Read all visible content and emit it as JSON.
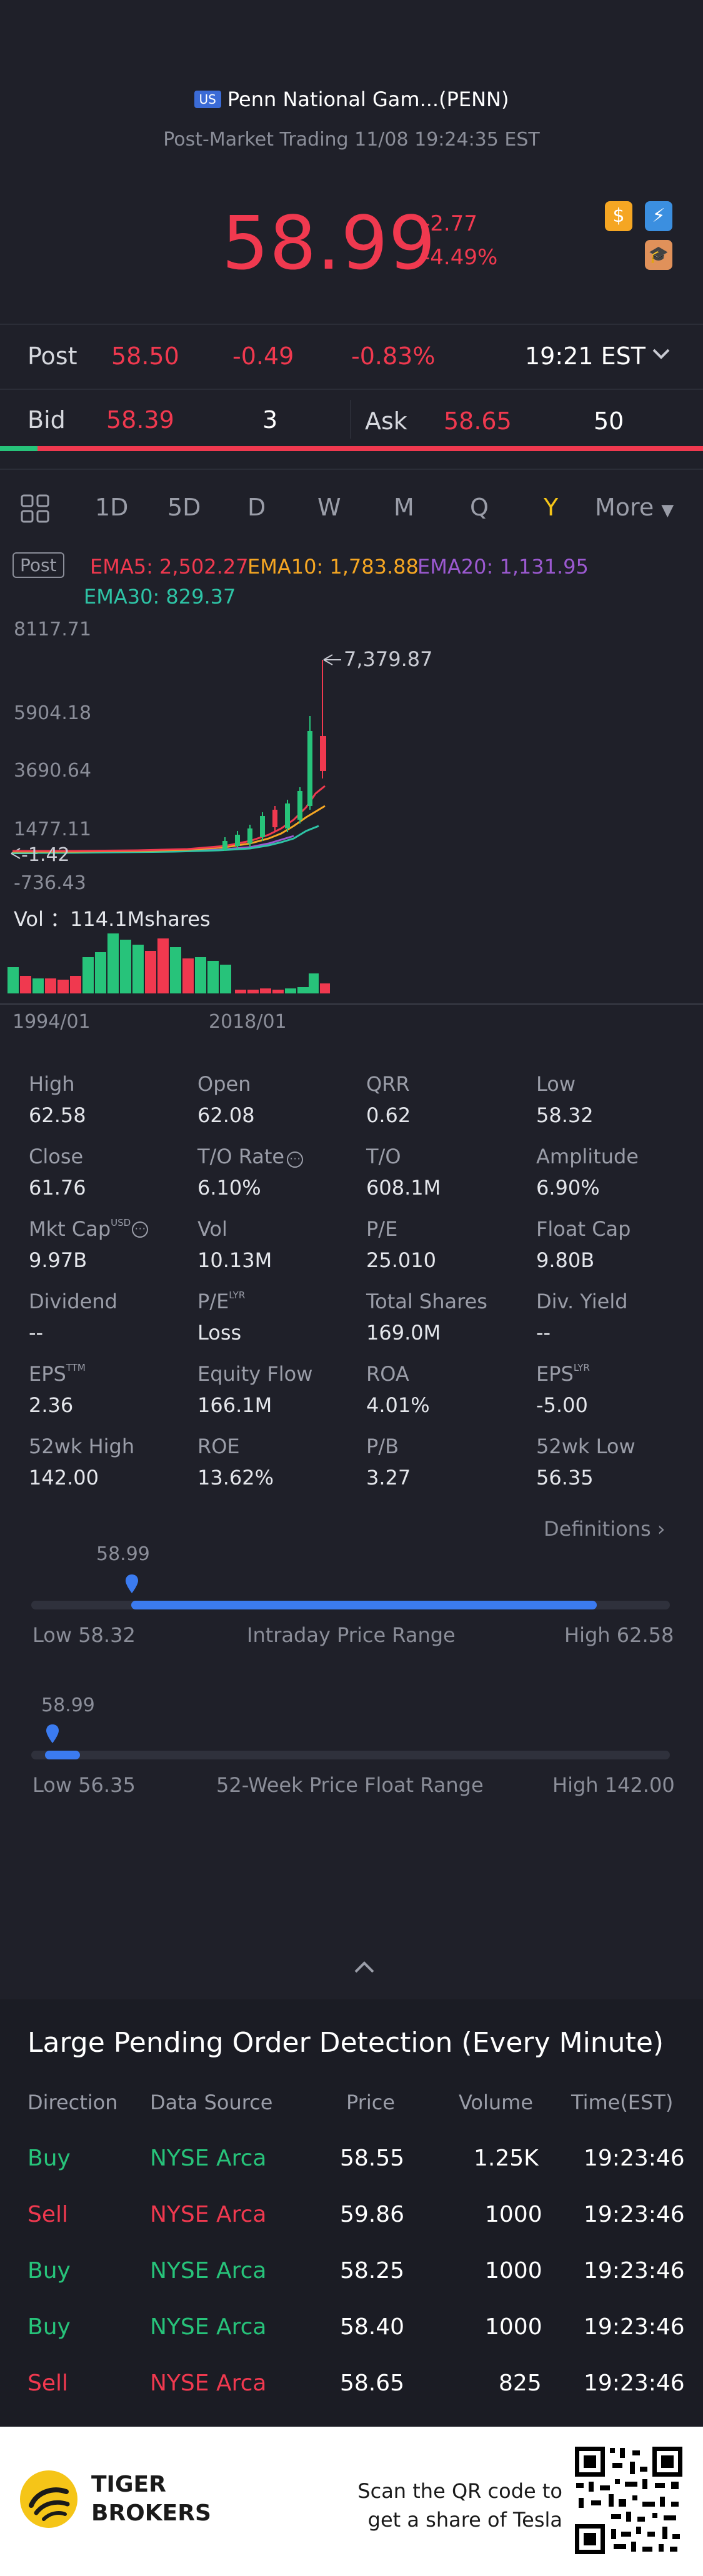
{
  "header": {
    "market_badge": "US",
    "title": "Penn National Gam...(PENN)",
    "subtitle": "Post-Market Trading 11/08 19:24:35 EST",
    "price": "58.99",
    "change": "-2.77",
    "change_pct": "-4.49%"
  },
  "post_row": {
    "label": "Post",
    "price": "58.50",
    "change": "-0.49",
    "change_pct": "-0.83%",
    "time": "19:21 EST"
  },
  "bid_ask": {
    "bid_label": "Bid",
    "bid_price": "58.39",
    "bid_size": "3",
    "ask_label": "Ask",
    "ask_price": "58.65",
    "ask_size": "50"
  },
  "tabs": [
    "1D",
    "5D",
    "D",
    "W",
    "M",
    "Q",
    "Y",
    "More"
  ],
  "active_tab": "Y",
  "chart": {
    "post_badge": "Post",
    "ema5": "EMA5: 2,502.27",
    "ema10": "EMA10: 1,783.88",
    "ema20": "EMA20: 1,131.95",
    "ema30": "EMA30: 829.37",
    "y_labels": [
      "8117.71",
      "5904.18",
      "3690.64",
      "1477.11",
      "-736.43"
    ],
    "current_marker": "-1.42",
    "peak_marker": "7,379.87",
    "vol_label": "Vol ：114.1Mshares",
    "x_labels": [
      "1994/01",
      "2018/01"
    ]
  },
  "chart_data": {
    "type": "candlestick",
    "y_range": [
      -736.43,
      8117.71
    ],
    "peak": 7379.87,
    "last": -1.42,
    "volume": "114.1Mshares",
    "x_start": "1994/01",
    "x_mark": "2018/01",
    "colors": {
      "ema5": "#f0394f",
      "ema10": "#f5a623",
      "ema20": "#9b59d0",
      "ema30": "#2ec4a6",
      "up": "#27c37a",
      "down": "#f0394f"
    }
  },
  "stats": [
    {
      "label": "High",
      "value": "62.58"
    },
    {
      "label": "Open",
      "value": "62.08"
    },
    {
      "label": "QRR",
      "value": "0.62"
    },
    {
      "label": "Low",
      "value": "58.32"
    },
    {
      "label": "Close",
      "value": "61.76"
    },
    {
      "label": "T/O Rate",
      "value": "6.10%"
    },
    {
      "label": "T/O",
      "value": "608.1M"
    },
    {
      "label": "Amplitude",
      "value": "6.90%"
    },
    {
      "label": "Mkt Cap",
      "value": "9.97B"
    },
    {
      "label": "Vol",
      "value": "10.13M"
    },
    {
      "label": "P/E",
      "value": "25.010"
    },
    {
      "label": "Float Cap",
      "value": "9.80B"
    },
    {
      "label": "Dividend",
      "value": "--"
    },
    {
      "label": "P/E",
      "value": "Loss"
    },
    {
      "label": "Total Shares",
      "value": "169.0M"
    },
    {
      "label": "Div. Yield",
      "value": "--"
    },
    {
      "label": "EPS",
      "value": "2.36"
    },
    {
      "label": "Equity Flow",
      "value": "166.1M"
    },
    {
      "label": "ROA",
      "value": "4.01%"
    },
    {
      "label": "EPS",
      "value": "-5.00"
    },
    {
      "label": "52wk High",
      "value": "142.00"
    },
    {
      "label": "ROE",
      "value": "13.62%"
    },
    {
      "label": "P/B",
      "value": "3.27"
    },
    {
      "label": "52wk Low",
      "value": "56.35"
    }
  ],
  "stat_sups": {
    "usd": "USD",
    "lyr": "LYR",
    "ttm": "TTM"
  },
  "definitions_label": "Definitions",
  "intraday": {
    "marker": "58.99",
    "low": "Low 58.32",
    "title": "Intraday Price Range",
    "high": "High 62.58",
    "position": 0.157,
    "fill": 0.88
  },
  "week52": {
    "marker": "58.99",
    "low": "Low 56.35",
    "title": "52-Week Price Float Range",
    "high": "High 142.00",
    "position": 0.031
  },
  "orders": {
    "title": "Large Pending Order Detection (Every Minute)",
    "headers": [
      "Direction",
      "Data Source",
      "Price",
      "Volume",
      "Time(EST)"
    ],
    "rows": [
      {
        "direction": "Buy",
        "source": "NYSE Arca",
        "price": "58.55",
        "volume": "1.25K",
        "time": "19:23:46"
      },
      {
        "direction": "Sell",
        "source": "NYSE Arca",
        "price": "59.86",
        "volume": "1000",
        "time": "19:23:46"
      },
      {
        "direction": "Buy",
        "source": "NYSE Arca",
        "price": "58.25",
        "volume": "1000",
        "time": "19:23:46"
      },
      {
        "direction": "Buy",
        "source": "NYSE Arca",
        "price": "58.40",
        "volume": "1000",
        "time": "19:23:46"
      },
      {
        "direction": "Sell",
        "source": "NYSE Arca",
        "price": "58.65",
        "volume": "825",
        "time": "19:23:46"
      }
    ]
  },
  "footer": {
    "brand_line1": "TIGER",
    "brand_line2": "BROKERS",
    "promo_line1": "Scan the QR code to",
    "promo_line2": "get a share of Tesla"
  }
}
